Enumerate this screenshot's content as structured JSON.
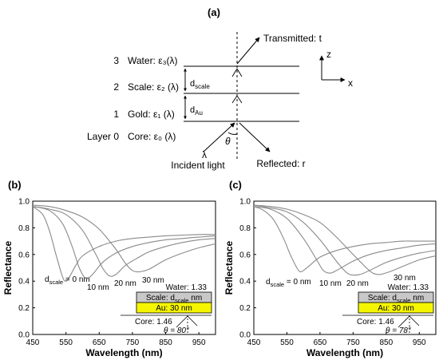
{
  "panel_a": {
    "label": "(a)",
    "layers": [
      {
        "num": "3",
        "text": "Water: ε₃(λ)"
      },
      {
        "num": "2",
        "text": "Scale: ε₂ (λ)"
      },
      {
        "num": "1",
        "text": "Gold: ε₁ (λ)"
      },
      {
        "num": "Layer 0",
        "text": "Core: ε₀ (λ)"
      }
    ],
    "d_scale": {
      "main": "d",
      "sub": "scale"
    },
    "d_au": {
      "main": "d",
      "sub": "Au"
    },
    "transmitted": "Transmitted: t",
    "reflected": "Reflected: r",
    "lambda": "λ",
    "incident": "Incident light",
    "theta": "θ",
    "axis_z": "z",
    "axis_x": "x"
  },
  "chart_data": [
    {
      "type": "line",
      "panel_label": "(b)",
      "xlabel": "Wavelength (nm)",
      "ylabel": "Reflectance",
      "xlim": [
        450,
        1000
      ],
      "ylim": [
        0,
        1.0
      ],
      "xticks": [
        450,
        550,
        650,
        750,
        850,
        950
      ],
      "yticks": [
        0.0,
        0.2,
        0.4,
        0.6,
        0.8,
        1.0
      ],
      "series": [
        {
          "label_main": "d",
          "label_sub": "scale",
          "label_tail": " = 0 nm",
          "x": [
            450,
            480,
            500,
            520,
            540,
            550,
            560,
            580,
            600,
            650,
            700,
            750,
            800,
            850,
            900,
            950,
            1000
          ],
          "y": [
            0.96,
            0.9,
            0.78,
            0.6,
            0.43,
            0.4,
            0.43,
            0.52,
            0.59,
            0.66,
            0.7,
            0.72,
            0.73,
            0.74,
            0.745,
            0.75,
            0.75
          ]
        },
        {
          "label_main": "10 nm",
          "label_sub": "",
          "label_tail": "",
          "x": [
            450,
            500,
            540,
            570,
            590,
            610,
            630,
            660,
            700,
            750,
            800,
            850,
            900,
            950,
            1000
          ],
          "y": [
            0.96,
            0.93,
            0.83,
            0.65,
            0.5,
            0.42,
            0.45,
            0.54,
            0.61,
            0.66,
            0.69,
            0.71,
            0.72,
            0.73,
            0.74
          ]
        },
        {
          "label_main": "20 nm",
          "label_sub": "",
          "label_tail": "",
          "x": [
            450,
            500,
            550,
            600,
            640,
            660,
            680,
            700,
            730,
            770,
            800,
            850,
            900,
            950,
            1000
          ],
          "y": [
            0.96,
            0.94,
            0.9,
            0.78,
            0.6,
            0.5,
            0.44,
            0.45,
            0.52,
            0.58,
            0.62,
            0.66,
            0.69,
            0.71,
            0.72
          ]
        },
        {
          "label_main": "30 nm",
          "label_sub": "",
          "label_tail": "",
          "x": [
            450,
            500,
            550,
            600,
            650,
            700,
            730,
            750,
            770,
            800,
            850,
            900,
            950,
            1000
          ],
          "y": [
            0.97,
            0.96,
            0.93,
            0.88,
            0.79,
            0.64,
            0.53,
            0.48,
            0.47,
            0.49,
            0.56,
            0.61,
            0.65,
            0.68
          ]
        }
      ],
      "inset": {
        "water": "Water: 1.33",
        "scale_main": "Scale: d",
        "scale_sub": "scale",
        "scale_tail": " nm",
        "au": "Au: 30 nm",
        "core": "Core: 1.46",
        "theta": "θ = 80°"
      }
    },
    {
      "type": "line",
      "panel_label": "(c)",
      "xlabel": "Wavelength (nm)",
      "ylabel": "Reflectance",
      "xlim": [
        450,
        1000
      ],
      "ylim": [
        0,
        1.0
      ],
      "xticks": [
        450,
        550,
        650,
        750,
        850,
        950
      ],
      "yticks": [
        0.0,
        0.2,
        0.4,
        0.6,
        0.8,
        1.0
      ],
      "series": [
        {
          "label_main": "d",
          "label_sub": "scale",
          "label_tail": " = 0 nm",
          "x": [
            450,
            480,
            510,
            540,
            560,
            580,
            590,
            600,
            620,
            650,
            700,
            750,
            800,
            850,
            900,
            950,
            1000
          ],
          "y": [
            0.96,
            0.93,
            0.86,
            0.72,
            0.6,
            0.5,
            0.47,
            0.48,
            0.52,
            0.58,
            0.63,
            0.66,
            0.68,
            0.69,
            0.7,
            0.7,
            0.7
          ]
        },
        {
          "label_main": "10 nm",
          "label_sub": "",
          "label_tail": "",
          "x": [
            450,
            500,
            550,
            600,
            640,
            660,
            680,
            700,
            750,
            800,
            850,
            900,
            950,
            1000
          ],
          "y": [
            0.96,
            0.94,
            0.87,
            0.72,
            0.56,
            0.48,
            0.46,
            0.48,
            0.55,
            0.6,
            0.63,
            0.65,
            0.67,
            0.68
          ]
        },
        {
          "label_main": "20 nm",
          "label_sub": "",
          "label_tail": "",
          "x": [
            450,
            500,
            550,
            600,
            650,
            690,
            720,
            740,
            770,
            800,
            850,
            900,
            950,
            1000
          ],
          "y": [
            0.97,
            0.95,
            0.92,
            0.84,
            0.71,
            0.58,
            0.49,
            0.45,
            0.45,
            0.48,
            0.54,
            0.58,
            0.61,
            0.63
          ]
        },
        {
          "label_main": "30 nm",
          "label_sub": "",
          "label_tail": "",
          "x": [
            450,
            500,
            550,
            600,
            650,
            700,
            750,
            790,
            810,
            830,
            860,
            900,
            950,
            1000
          ],
          "y": [
            0.97,
            0.96,
            0.94,
            0.9,
            0.84,
            0.73,
            0.6,
            0.5,
            0.46,
            0.45,
            0.47,
            0.51,
            0.56,
            0.59
          ]
        }
      ],
      "inset": {
        "water": "Water: 1.33",
        "scale_main": "Scale: d",
        "scale_sub": "scale",
        "scale_tail": " nm",
        "au": "Au: 30 nm",
        "core": "Core: 1.46",
        "theta": "θ = 78°"
      }
    }
  ]
}
